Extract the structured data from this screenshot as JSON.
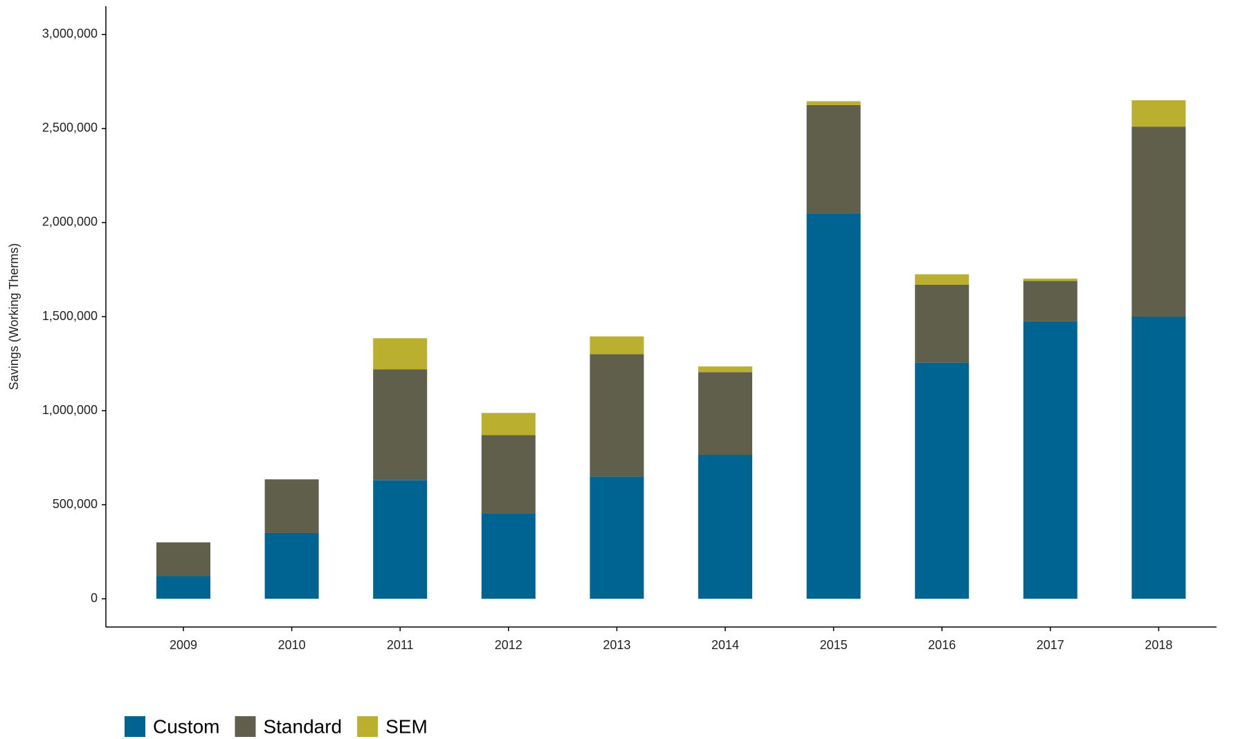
{
  "chart_data": {
    "type": "stacked_bar",
    "y_label": "Savings (Working Therms)",
    "categories": [
      "2009",
      "2010",
      "2011",
      "2012",
      "2013",
      "2014",
      "2015",
      "2016",
      "2017",
      "2018"
    ],
    "series": [
      {
        "name": "Custom",
        "color": "#006492",
        "values": [
          120000,
          350000,
          630000,
          455000,
          650000,
          765000,
          2050000,
          1255000,
          1475000,
          1500000
        ]
      },
      {
        "name": "Standard",
        "color": "#5f5f4b",
        "values": [
          180000,
          285000,
          590000,
          415000,
          650000,
          440000,
          575000,
          415000,
          215000,
          1010000
        ]
      },
      {
        "name": "SEM",
        "color": "#bbaf30",
        "values": [
          0,
          0,
          165000,
          118000,
          95000,
          30000,
          20000,
          55000,
          12000,
          140000
        ]
      }
    ],
    "ylim": [
      -150000,
      3150000
    ],
    "yticks": [
      0,
      {
        "value": 500000,
        "label": "500,000"
      },
      {
        "value": 1000000,
        "label": "1,000,000"
      },
      {
        "value": 1500000,
        "label": "1,500,000"
      },
      {
        "value": 2000000,
        "label": "2,000,000"
      },
      {
        "value": 2500000,
        "label": "2,500,000"
      },
      {
        "value": 3000000,
        "label": "3,000,000"
      }
    ],
    "grid": false,
    "legend": "bottom-left"
  }
}
